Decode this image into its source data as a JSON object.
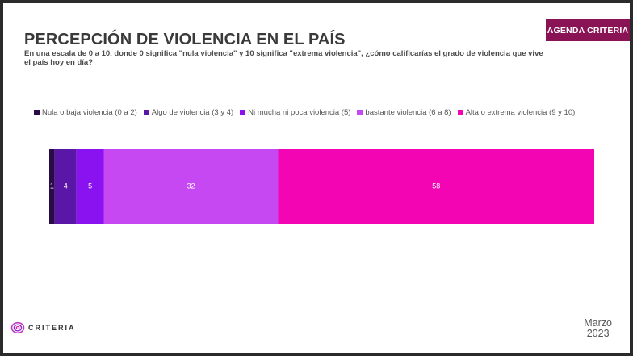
{
  "header": {
    "badge": "AGENDA CRITERIA",
    "title": "PERCEPCIÓN DE VIOLENCIA EN EL PAÍS",
    "subtitle": "En una escala de 0 a 10, donde 0 significa \"nula violencia\" y 10 significa \"extrema violencia\", ¿cómo calificarías el grado de violencia que vive el país hoy en día?"
  },
  "chart_data": {
    "type": "bar",
    "orientation": "horizontal-stacked",
    "categories": [
      "Nula o baja violencia (0 a 2)",
      "Algo de violencia (3 y 4)",
      "Ni mucha ni poca violencia (5)",
      "bastante violencia (6 a 8)",
      "Alta o extrema violencia (9 y 10)"
    ],
    "values": [
      1,
      4,
      5,
      32,
      58
    ],
    "colors": [
      "#2b0a4a",
      "#5a16a6",
      "#8a11f0",
      "#c648f2",
      "#f305b4"
    ],
    "legend_position": "top",
    "grid": false
  },
  "footer": {
    "logo_text": "CRITERIA",
    "date_month": "Marzo",
    "date_year": "2023"
  }
}
